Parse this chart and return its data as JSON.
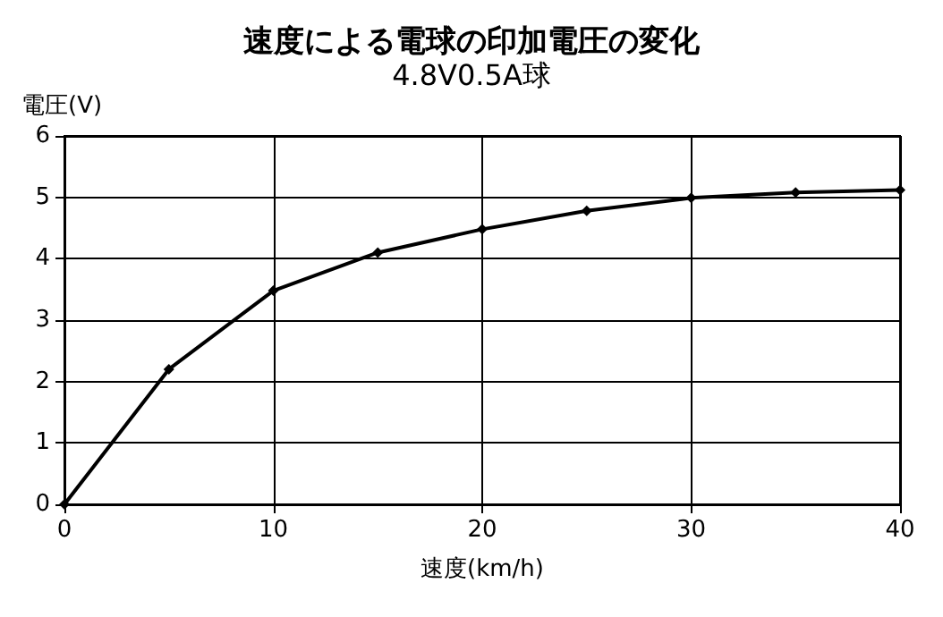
{
  "chart_data": {
    "type": "line",
    "title": "速度による電球の印加電圧の変化",
    "subtitle": "4.8V0.5A球",
    "xlabel": "速度(km/h)",
    "ylabel": "電圧(V)",
    "x": [
      0,
      5,
      10,
      15,
      20,
      25,
      30,
      35,
      40
    ],
    "series": [
      {
        "color": "#000000",
        "values": [
          0,
          2.2,
          3.48,
          4.1,
          4.48,
          4.78,
          4.99,
          5.08,
          5.12
        ]
      }
    ],
    "xlim": [
      0,
      40
    ],
    "xticks": [
      0,
      10,
      20,
      30,
      40
    ],
    "ylim": [
      0,
      6
    ],
    "yticks": [
      0,
      1,
      2,
      3,
      4,
      5,
      6
    ],
    "grid": true,
    "marker": "diamond",
    "line_style": "solid"
  }
}
